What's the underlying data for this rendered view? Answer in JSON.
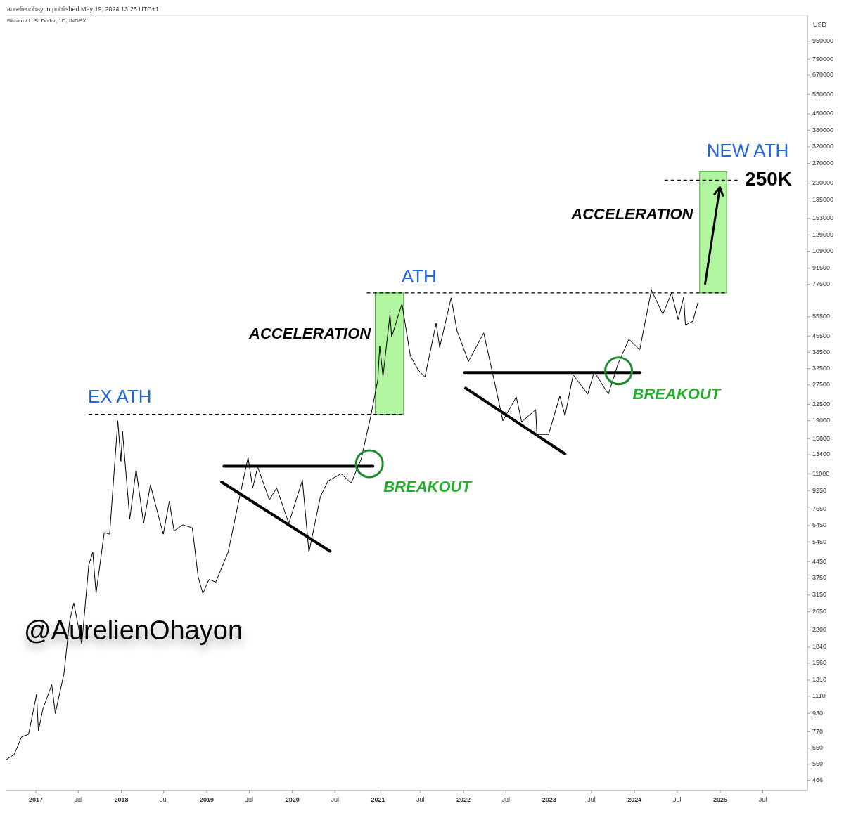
{
  "chart_data": {
    "type": "line",
    "title": "Bitcoin / U.S. Dollar, 1D, INDEX",
    "ylabel": "USD",
    "log": "y",
    "grid": false,
    "marker": "none",
    "xlim": [
      "2016-08-25",
      "2026-01-08"
    ],
    "xticks": [
      "2017",
      {
        "value": "2017-07",
        "label": "Jul"
      },
      "2018",
      {
        "value": "2018-07",
        "label": "Jul"
      },
      "2019",
      {
        "value": "2019-07",
        "label": "Jul"
      },
      "2020",
      {
        "value": "2020-07",
        "label": "Jul"
      },
      "2021",
      {
        "value": "2021-07",
        "label": "Jul"
      },
      "2022",
      {
        "value": "2022-07",
        "label": "Jul"
      },
      "2023",
      {
        "value": "2023-07",
        "label": "Jul"
      },
      "2024",
      {
        "value": "2024-07",
        "label": "Jul"
      },
      "2025",
      {
        "value": "2025-07",
        "label": "Jul"
      }
    ],
    "ylim": [
      420,
      1240000
    ],
    "yticks": [
      466,
      550,
      650,
      770,
      930,
      1110,
      1310,
      1560,
      1840,
      2200,
      2650,
      3150,
      3750,
      4450,
      5450,
      6450,
      7650,
      9250,
      11000,
      13400,
      15800,
      19000,
      22500,
      27500,
      32500,
      38500,
      45500,
      55500,
      77500,
      91500,
      109000,
      129000,
      153000,
      185000,
      220000,
      270000,
      320000,
      380000,
      450000,
      550000,
      670000,
      790000,
      950000
    ],
    "x": [
      "2016-08-25",
      "2016-10-01",
      "2016-11-01",
      "2016-12-01",
      "2017-01-04",
      "2017-01-12",
      "2017-02-01",
      "2017-03-10",
      "2017-03-25",
      "2017-05-01",
      "2017-05-25",
      "2017-06-12",
      "2017-07-16",
      "2017-08-15",
      "2017-09-01",
      "2017-09-15",
      "2017-10-20",
      "2017-11-12",
      "2017-12-17",
      "2017-12-30",
      "2018-01-06",
      "2018-02-06",
      "2018-03-05",
      "2018-04-06",
      "2018-05-05",
      "2018-06-29",
      "2018-07-25",
      "2018-08-14",
      "2018-09-20",
      "2018-10-31",
      "2018-11-25",
      "2018-12-15",
      "2019-01-10",
      "2019-02-08",
      "2019-04-02",
      "2019-05-14",
      "2019-06-26",
      "2019-07-16",
      "2019-08-06",
      "2019-09-25",
      "2019-10-26",
      "2019-12-17",
      "2020-02-13",
      "2020-03-12",
      "2020-04-30",
      "2020-06-01",
      "2020-07-27",
      "2020-09-08",
      "2020-10-21",
      "2020-11-30",
      "2020-12-31",
      "2021-01-08",
      "2021-01-22",
      "2021-02-21",
      "2021-02-28",
      "2021-04-13",
      "2021-05-19",
      "2021-06-22",
      "2021-07-20",
      "2021-09-06",
      "2021-09-21",
      "2021-11-09",
      "2021-12-04",
      "2022-01-22",
      "2022-03-28",
      "2022-05-11",
      "2022-06-18",
      "2022-08-14",
      "2022-09-06",
      "2022-11-05",
      "2022-11-10",
      "2022-12-30",
      "2023-02-16",
      "2023-03-10",
      "2023-04-14",
      "2023-06-15",
      "2023-07-13",
      "2023-09-11",
      "2023-10-24",
      "2023-12-08",
      "2024-01-23",
      "2024-03-13",
      "2024-05-01",
      "2024-06-07",
      "2024-07-05",
      "2024-07-29",
      "2024-08-05",
      "2024-09-06",
      "2024-09-27"
    ],
    "series": [
      {
        "color": "#000000",
        "values": [
          575,
          610,
          730,
          750,
          1130,
          780,
          980,
          1250,
          930,
          1400,
          2400,
          2900,
          1900,
          4300,
          4900,
          3200,
          6000,
          5900,
          19000,
          12500,
          17000,
          6900,
          11500,
          6600,
          9800,
          5900,
          8300,
          6100,
          6500,
          6300,
          3800,
          3200,
          3700,
          3600,
          4900,
          8000,
          13000,
          9500,
          11800,
          8400,
          9500,
          6600,
          10300,
          4900,
          8700,
          10200,
          11000,
          10000,
          12800,
          19700,
          29000,
          41000,
          30000,
          57000,
          45000,
          63500,
          37000,
          32000,
          29800,
          52000,
          40500,
          67500,
          48000,
          35000,
          47000,
          29000,
          19000,
          24300,
          18800,
          21300,
          16500,
          16500,
          24500,
          20000,
          30500,
          25000,
          31500,
          25000,
          34500,
          44000,
          39500,
          73000,
          57000,
          71000,
          54000,
          68000,
          51000,
          53000,
          64000
        ]
      },
      {
        "type": "line",
        "color": "#000000",
        "x": [
          "2019-03-15",
          "2020-12-10"
        ],
        "values": [
          11900,
          11900
        ]
      },
      {
        "type": "line",
        "color": "#000000",
        "x": [
          "2019-03-05",
          "2020-06-10"
        ],
        "values": [
          10100,
          4950
        ]
      },
      {
        "type": "line",
        "color": "#000000",
        "x": [
          "2022-01-05",
          "2024-01-25"
        ],
        "values": [
          31200,
          31200
        ]
      },
      {
        "type": "line",
        "color": "#000000",
        "x": [
          "2022-01-10",
          "2023-03-10"
        ],
        "values": [
          26600,
          13500
        ]
      }
    ],
    "ref_lines": [
      {
        "axis": "y",
        "value": 20300,
        "color": "#000000",
        "line_style": "dashed"
      },
      {
        "axis": "y",
        "value": 71000,
        "color": "#000000",
        "line_style": "dashed"
      },
      {
        "axis": "y",
        "value": 227000,
        "color": "#000000",
        "line_style": "dashed"
      }
    ],
    "bands": [
      {
        "axis": "x",
        "from": "2020-12-20",
        "to": "2021-04-20",
        "color": "#9ef28a"
      },
      {
        "axis": "x",
        "from": "2024-10-05",
        "to": "2025-01-28",
        "color": "#9ef28a"
      }
    ],
    "annotations": [
      "aurelienohayon published May 19, 2024 13:25 UTC+1",
      "@AurelienOhayon",
      "EX ATH",
      "ATH",
      {
        "text": "ACCELERATION",
        "x": "2020-12-25",
        "y": 46100
      },
      {
        "text": "ACCELERATION",
        "x": "2024-10-01",
        "y": 158000
      },
      "NEW ATH",
      "250K",
      {
        "text": "BREAKOUT",
        "x": "2020-11-25",
        "y": 12200
      },
      {
        "text": "BREAKOUT",
        "x": "2023-10-25",
        "y": 31800
      }
    ]
  }
}
